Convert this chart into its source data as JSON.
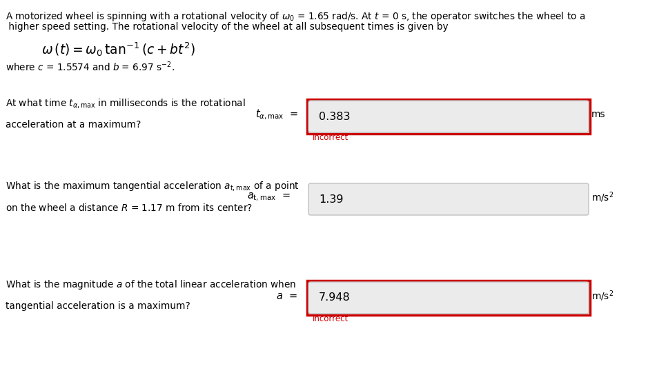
{
  "bg_color": "#ffffff",
  "text_color": "#000000",
  "incorrect_color": "#cc0000",
  "box_bg": "#ebebeb",
  "box_border_normal": "#c0c0c0",
  "box_border_red": "#cc0000",
  "label_color": "#000000",
  "line1": "A motorized wheel is spinning with a rotational velocity of ω₀ = 1.65 rad/s. At t = 0 s, the operator switches the wheel to a",
  "line2": " higher speed setting. The rotational velocity of the wheel at all subsequent times is given by",
  "q1_line1": "At what time tα,max in milliseconds is the rotational",
  "q1_line2": "acceleration at a maximum?",
  "q1_value": "0.383",
  "q1_unit": "ms",
  "q1_has_incorrect": true,
  "q1_red_border": true,
  "q2_line1": "What is the maximum tangential acceleration at,max of a point",
  "q2_line2": "on the wheel a distance R = 1.17 m from its center?",
  "q2_value": "1.39",
  "q2_unit": "m/s²",
  "q2_has_incorrect": false,
  "q2_red_border": false,
  "q3_line1": "What is the magnitude a of the total linear acceleration when",
  "q3_line2": "tangential acceleration is a maximum?",
  "q3_value": "7.948",
  "q3_unit": "m/s²",
  "q3_has_incorrect": true,
  "q3_red_border": true,
  "figw": 9.39,
  "figh": 5.57,
  "dpi": 100
}
